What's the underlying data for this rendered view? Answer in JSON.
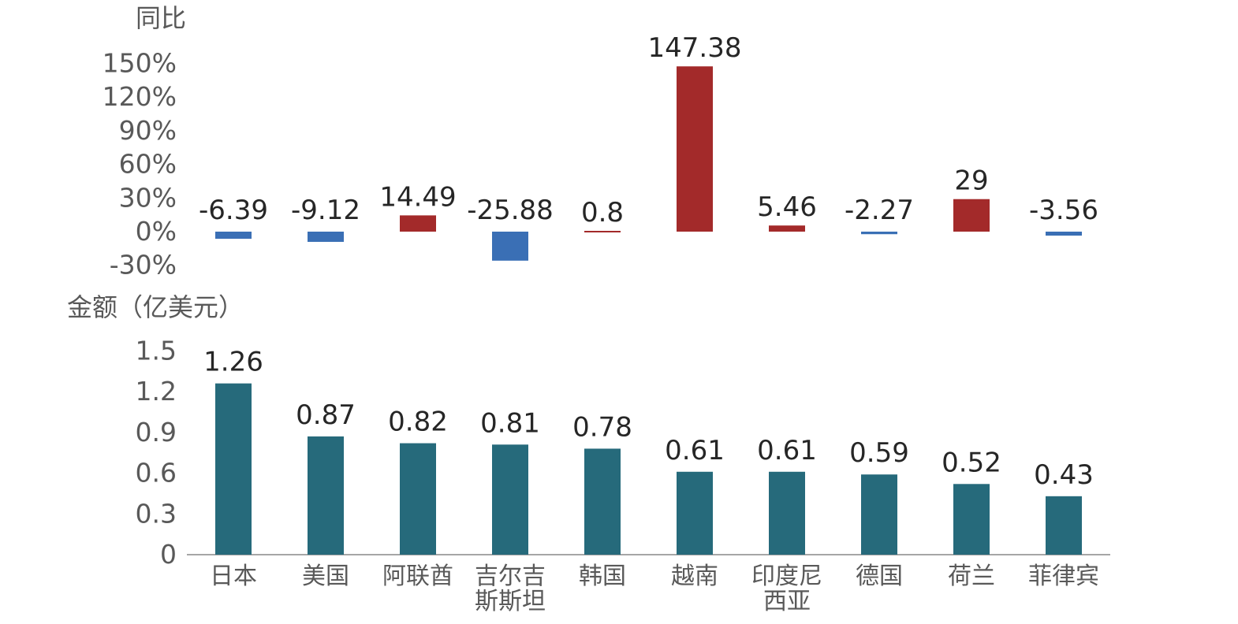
{
  "chart_data": [
    {
      "type": "bar",
      "ylabel": "同比",
      "categories": [
        "日本",
        "美国",
        "阿联酋",
        "吉尔吉斯斯坦",
        "韩国",
        "越南",
        "印度尼西亚",
        "德国",
        "荷兰",
        "菲律宾"
      ],
      "values": [
        -6.39,
        -9.12,
        14.49,
        -25.88,
        0.8,
        147.38,
        5.46,
        -2.27,
        29,
        -3.56
      ],
      "data_labels": [
        "-6.39",
        "-9.12",
        "14.49",
        "-25.88",
        "0.8",
        "147.38",
        "5.46",
        "-2.27",
        "29",
        "-3.56"
      ],
      "yticks": [
        "-30%",
        "0%",
        "30%",
        "60%",
        "90%",
        "120%",
        "150%"
      ],
      "ylim": [
        -30,
        150
      ],
      "colors": {
        "positive": "#A32A2A",
        "negative": "#3A6FB5"
      },
      "grid": false
    },
    {
      "type": "bar",
      "ylabel": "金额（亿美元）",
      "categories": [
        "日本",
        "美国",
        "阿联酋",
        "吉尔吉斯斯坦",
        "韩国",
        "越南",
        "印度尼西亚",
        "德国",
        "荷兰",
        "菲律宾"
      ],
      "values": [
        1.26,
        0.87,
        0.82,
        0.81,
        0.78,
        0.61,
        0.61,
        0.59,
        0.52,
        0.43
      ],
      "data_labels": [
        "1.26",
        "0.87",
        "0.82",
        "0.81",
        "0.78",
        "0.61",
        "0.61",
        "0.59",
        "0.52",
        "0.43"
      ],
      "yticks": [
        "0",
        "0.3",
        "0.6",
        "0.9",
        "1.2",
        "1.5"
      ],
      "ylim": [
        0,
        1.5
      ],
      "colors": {
        "bar": "#266A7B"
      },
      "grid": false
    }
  ],
  "category_labels": [
    [
      "日本"
    ],
    [
      "美国"
    ],
    [
      "阿联酋"
    ],
    [
      "吉尔吉",
      "斯斯坦"
    ],
    [
      "韩国"
    ],
    [
      "越南"
    ],
    [
      "印度尼",
      "西亚"
    ],
    [
      "德国"
    ],
    [
      "荷兰"
    ],
    [
      "菲律宾"
    ]
  ]
}
